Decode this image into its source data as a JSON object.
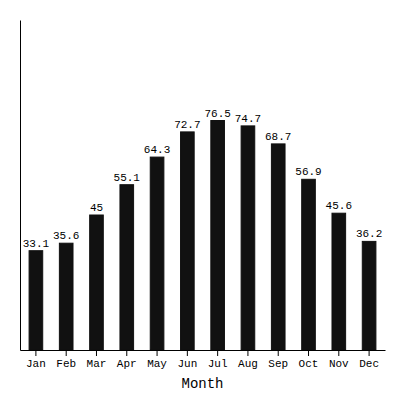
{
  "chart_data": {
    "type": "bar",
    "categories": [
      "Jan",
      "Feb",
      "Mar",
      "Apr",
      "May",
      "Jun",
      "Jul",
      "Aug",
      "Sep",
      "Oct",
      "Nov",
      "Dec"
    ],
    "values": [
      33.1,
      35.6,
      45.0,
      55.1,
      64.3,
      72.7,
      76.5,
      74.7,
      68.7,
      56.9,
      45.6,
      36.2
    ],
    "color": "#111111",
    "xlabel": "Month",
    "ylim": [
      0,
      110
    ],
    "data_labels": true,
    "tick_labels": "x"
  }
}
